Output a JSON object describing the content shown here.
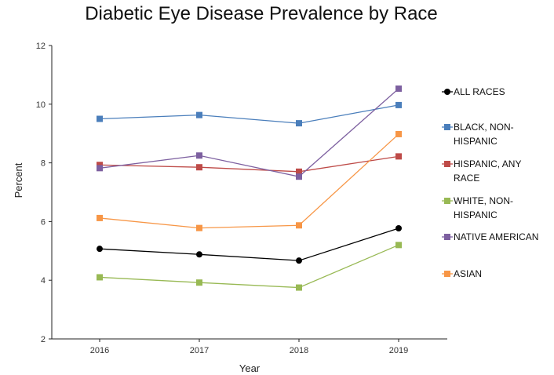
{
  "chart_data": {
    "type": "line",
    "title": "Diabetic Eye Disease Prevalence by Race",
    "xlabel": "Year",
    "ylabel": "Percent",
    "x": [
      "2016",
      "2017",
      "2018",
      "2019"
    ],
    "ylim": [
      2,
      12
    ],
    "yticks": [
      "2",
      "4",
      "6",
      "8",
      "10",
      "12"
    ],
    "grid": false,
    "legend_position": "right",
    "series": [
      {
        "name": "ALL RACES",
        "lines": [
          "ALL RACES"
        ],
        "color": "#000000",
        "marker": "circle",
        "values": [
          5.07,
          4.88,
          4.67,
          5.77
        ]
      },
      {
        "name": "BLACK, NON-HISPANIC",
        "lines": [
          "BLACK, NON-",
          "HISPANIC"
        ],
        "color": "#4a7ebb",
        "marker": "square",
        "values": [
          9.5,
          9.63,
          9.35,
          9.97
        ]
      },
      {
        "name": "HISPANIC, ANY RACE",
        "lines": [
          "HISPANIC, ANY",
          "RACE"
        ],
        "color": "#be4b48",
        "marker": "square",
        "values": [
          7.93,
          7.85,
          7.7,
          8.22
        ]
      },
      {
        "name": "WHITE, NON-HISPANIC",
        "lines": [
          "WHITE, NON-",
          "HISPANIC"
        ],
        "color": "#98b954",
        "marker": "square",
        "values": [
          4.1,
          3.92,
          3.75,
          5.2
        ]
      },
      {
        "name": "NATIVE AMERICAN",
        "lines": [
          "NATIVE AMERICAN"
        ],
        "color": "#7d60a0",
        "marker": "square",
        "values": [
          7.82,
          8.25,
          7.53,
          10.53
        ]
      },
      {
        "name": "ASIAN",
        "lines": [
          "ASIAN"
        ],
        "color": "#f79646",
        "marker": "square",
        "values": [
          6.12,
          5.78,
          5.87,
          8.98
        ]
      }
    ]
  }
}
